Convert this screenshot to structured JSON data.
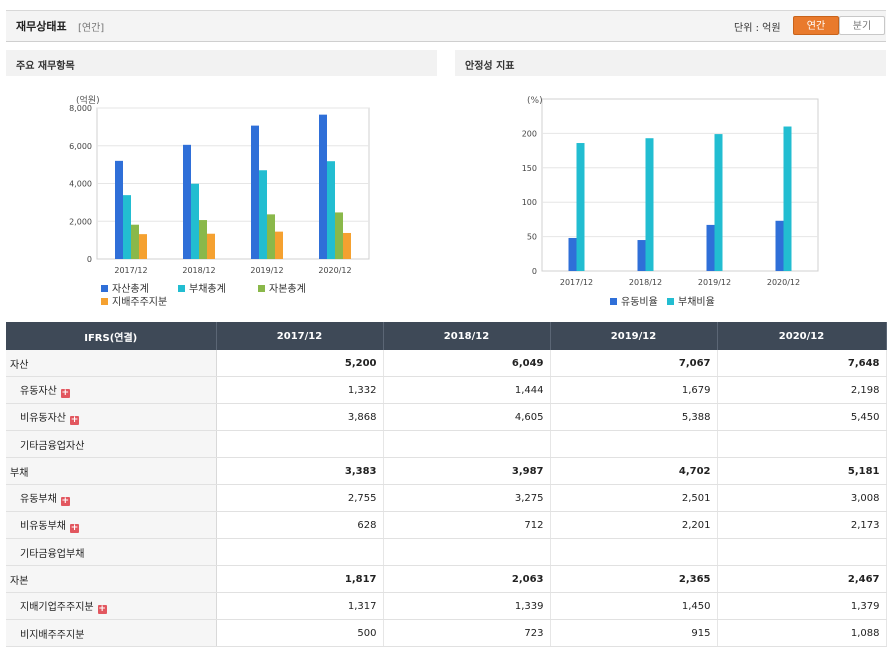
{
  "header": {
    "title": "재무상태표",
    "subtitle": "[연간]",
    "unit_label": "단위 : 억원",
    "tabs": [
      {
        "label": "연간",
        "active": true
      },
      {
        "label": "분기",
        "active": false
      }
    ]
  },
  "colors": {
    "asset": "#2f6fd8",
    "liability": "#22bdd1",
    "equity": "#8ab84a",
    "controlling": "#f5a130",
    "accent": "#e97a2c"
  },
  "chart_data": [
    {
      "type": "bar",
      "title": "주요 재무항목",
      "ylabel": "(억원)",
      "ylim": [
        0,
        8000
      ],
      "yticks": [
        0,
        2000,
        4000,
        6000,
        8000
      ],
      "ytick_labels": [
        "0",
        "2,000",
        "4,000",
        "6,000",
        "8,000"
      ],
      "categories": [
        "2017/12",
        "2018/12",
        "2019/12",
        "2020/12"
      ],
      "grid": true,
      "legend_position": "bottom",
      "series": [
        {
          "name": "자산총계",
          "color": "#2f6fd8",
          "values": [
            5200,
            6049,
            7067,
            7648
          ]
        },
        {
          "name": "부채총계",
          "color": "#22bdd1",
          "values": [
            3383,
            3987,
            4702,
            5181
          ]
        },
        {
          "name": "자본총계",
          "color": "#8ab84a",
          "values": [
            1817,
            2063,
            2365,
            2467
          ]
        },
        {
          "name": "지배주주지분",
          "color": "#f5a130",
          "values": [
            1317,
            1339,
            1450,
            1379
          ]
        }
      ]
    },
    {
      "type": "bar",
      "title": "안정성 지표",
      "ylabel": "(%)",
      "ylim": [
        0,
        250
      ],
      "yticks": [
        0,
        50,
        100,
        150,
        200
      ],
      "ytick_labels": [
        "0",
        "50",
        "100",
        "150",
        "200"
      ],
      "categories": [
        "2017/12",
        "2018/12",
        "2019/12",
        "2020/12"
      ],
      "grid": true,
      "legend_position": "bottom",
      "series": [
        {
          "name": "유동비율",
          "color": "#2f6fd8",
          "values": [
            48,
            45,
            67,
            73
          ]
        },
        {
          "name": "부채비율",
          "color": "#22bdd1",
          "values": [
            186,
            193,
            199,
            210
          ]
        }
      ]
    }
  ],
  "table": {
    "corner": "IFRS(연결)",
    "columns": [
      "2017/12",
      "2018/12",
      "2019/12",
      "2020/12"
    ],
    "rows": [
      {
        "label": "자산",
        "kind": "main",
        "expand": false,
        "values": [
          "5,200",
          "6,049",
          "7,067",
          "7,648"
        ]
      },
      {
        "label": "유동자산",
        "kind": "sub",
        "expand": true,
        "values": [
          "1,332",
          "1,444",
          "1,679",
          "2,198"
        ]
      },
      {
        "label": "비유동자산",
        "kind": "sub",
        "expand": true,
        "values": [
          "3,868",
          "4,605",
          "5,388",
          "5,450"
        ]
      },
      {
        "label": "기타금융업자산",
        "kind": "sub",
        "expand": false,
        "values": [
          "",
          "",
          "",
          ""
        ]
      },
      {
        "label": "부채",
        "kind": "main",
        "expand": false,
        "values": [
          "3,383",
          "3,987",
          "4,702",
          "5,181"
        ]
      },
      {
        "label": "유동부채",
        "kind": "sub",
        "expand": true,
        "values": [
          "2,755",
          "3,275",
          "2,501",
          "3,008"
        ]
      },
      {
        "label": "비유동부채",
        "kind": "sub",
        "expand": true,
        "values": [
          "628",
          "712",
          "2,201",
          "2,173"
        ]
      },
      {
        "label": "기타금융업부채",
        "kind": "sub",
        "expand": false,
        "values": [
          "",
          "",
          "",
          ""
        ]
      },
      {
        "label": "자본",
        "kind": "main",
        "expand": false,
        "values": [
          "1,817",
          "2,063",
          "2,365",
          "2,467"
        ]
      },
      {
        "label": "지배기업주주지분",
        "kind": "sub",
        "expand": true,
        "values": [
          "1,317",
          "1,339",
          "1,450",
          "1,379"
        ]
      },
      {
        "label": "비지배주주지분",
        "kind": "sub",
        "expand": false,
        "values": [
          "500",
          "723",
          "915",
          "1,088"
        ]
      }
    ]
  }
}
